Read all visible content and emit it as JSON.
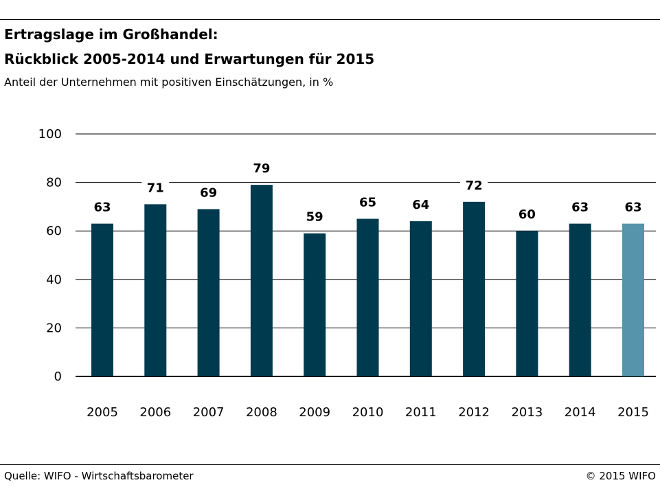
{
  "title_line1": "Ertragslage im Großhandel:",
  "title_line2": "Rückblick 2005-2014 und Erwartungen für 2015",
  "subtitle": "Anteil der Unternehmen mit positiven Einschätzungen, in %",
  "footer": {
    "source": "Quelle: WIFO - Wirtschaftsbarometer",
    "copyright": "© 2015 WIFO"
  },
  "chart_data": {
    "type": "bar",
    "categories": [
      "2005",
      "2006",
      "2007",
      "2008",
      "2009",
      "2010",
      "2011",
      "2012",
      "2013",
      "2014",
      "2015"
    ],
    "values": [
      63,
      71,
      69,
      79,
      59,
      65,
      64,
      72,
      60,
      63,
      63
    ],
    "data_labels": [
      "63",
      "71",
      "69",
      "79",
      "59",
      "65",
      "64",
      "72",
      "60",
      "63",
      "63"
    ],
    "ylim": [
      0,
      100
    ],
    "yticks": [
      0,
      20,
      40,
      60,
      80,
      100
    ],
    "ytick_labels": [
      "0",
      "20",
      "40",
      "60",
      "80",
      "100"
    ],
    "grid": true,
    "colors": {
      "bar": "#003a4f",
      "bar_highlight": "#5594ab",
      "grid": "#000000"
    },
    "highlight_index": 10
  }
}
